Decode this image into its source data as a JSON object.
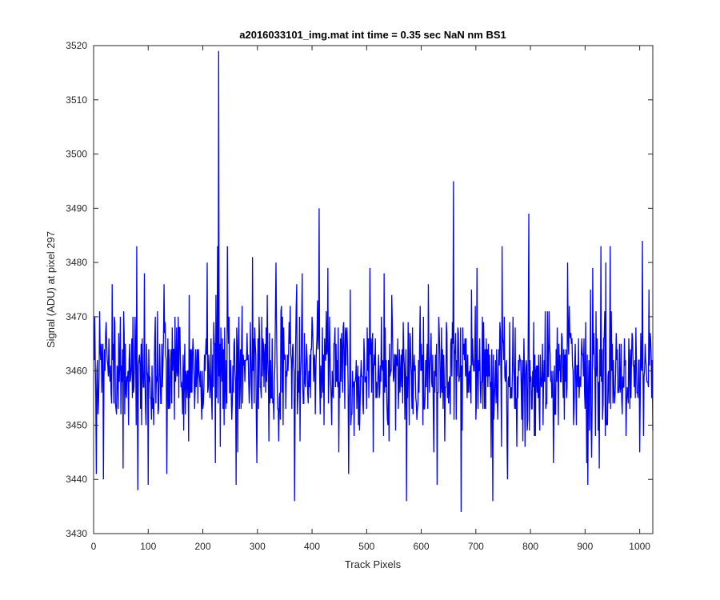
{
  "chart_data": {
    "type": "line",
    "title": "a2016033101_img.mat int time = 0.35 sec  NaN nm BS1",
    "xlabel": "Track Pixels",
    "ylabel": "Signal (ADU) at pixel 297",
    "xlim": [
      0,
      1024
    ],
    "ylim": [
      3430,
      3520
    ],
    "xticks": [
      0,
      100,
      200,
      300,
      400,
      500,
      600,
      700,
      800,
      900,
      1000
    ],
    "yticks": [
      3430,
      3440,
      3450,
      3460,
      3470,
      3480,
      3490,
      3500,
      3510,
      3520
    ],
    "grid": false,
    "legend": "none",
    "series": [
      {
        "color": "#0000ff",
        "noise": {
          "count": 1024,
          "mean": 3460,
          "std": 6,
          "min": 3438,
          "max": 3476
        },
        "features": [
          [
            1,
            3470
          ],
          [
            4,
            3441
          ],
          [
            10,
            3471
          ],
          [
            17,
            3440
          ],
          [
            33,
            3476
          ],
          [
            48,
            3470
          ],
          [
            53,
            3442
          ],
          [
            78,
            3483
          ],
          [
            80,
            3438
          ],
          [
            92,
            3478
          ],
          [
            99,
            3439
          ],
          [
            128,
            3476
          ],
          [
            133,
            3441
          ],
          [
            207,
            3480
          ],
          [
            222,
            3443
          ],
          [
            226,
            3483
          ],
          [
            228,
            3519
          ],
          [
            231,
            3446
          ],
          [
            244,
            3483
          ],
          [
            260,
            3439
          ],
          [
            290,
            3481
          ],
          [
            333,
            3480
          ],
          [
            367,
            3436
          ],
          [
            381,
            3478
          ],
          [
            412,
            3490
          ],
          [
            428,
            3479
          ],
          [
            466,
            3441
          ],
          [
            505,
            3479
          ],
          [
            531,
            3478
          ],
          [
            572,
            3436
          ],
          [
            628,
            3439
          ],
          [
            658,
            3495
          ],
          [
            672,
            3434
          ],
          [
            701,
            3479
          ],
          [
            727,
            3444
          ],
          [
            730,
            3436
          ],
          [
            747,
            3483
          ],
          [
            757,
            3440
          ],
          [
            796,
            3489
          ],
          [
            867,
            3480
          ],
          [
            904,
            3439
          ],
          [
            913,
            3479
          ],
          [
            928,
            3483
          ],
          [
            937,
            3480
          ],
          [
            945,
            3483
          ],
          [
            1004,
            3484
          ]
        ]
      }
    ]
  }
}
